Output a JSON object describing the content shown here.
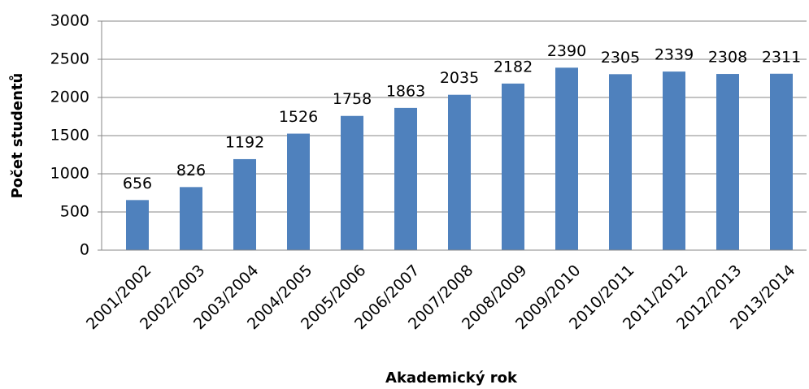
{
  "chart_data": {
    "type": "bar",
    "x_label": "Akademický rok",
    "y_label": "Počet studentů",
    "categories": [
      "2001/2002",
      "2002/2003",
      "2003/2004",
      "2004/2005",
      "2005/2006",
      "2006/2007",
      "2007/2008",
      "2008/2009",
      "2009/2010",
      "2010/2011",
      "2011/2012",
      "2012/2013",
      "2013/2014"
    ],
    "values": [
      656,
      826,
      1192,
      1526,
      1758,
      1863,
      2035,
      2182,
      2390,
      2305,
      2339,
      2308,
      2311
    ],
    "color": "#4f81bd",
    "ylim": [
      0,
      3000
    ],
    "yticks": [
      0,
      500,
      1000,
      1500,
      2000,
      2500,
      3000
    ],
    "grid": true
  }
}
